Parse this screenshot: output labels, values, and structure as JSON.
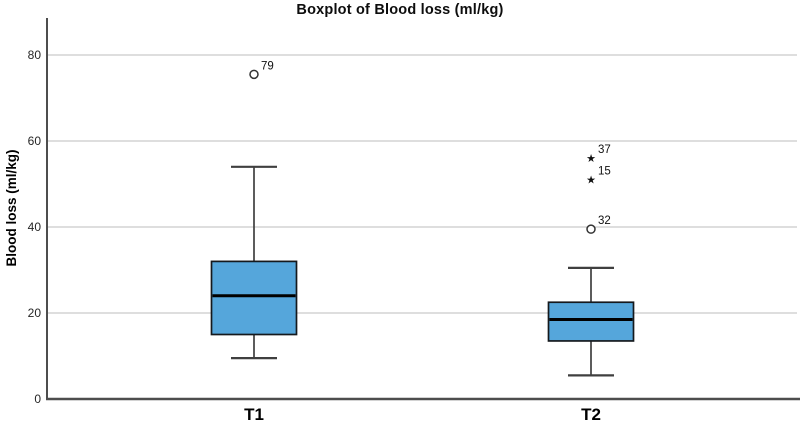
{
  "chart_data": {
    "type": "boxplot",
    "title": "Boxplot of Blood loss (ml/kg)",
    "ylabel": "Blood loss (ml/kg)",
    "xlabel": "",
    "categories": [
      "T1",
      "T2"
    ],
    "yticks": [
      0,
      20,
      40,
      60,
      80
    ],
    "ylim": [
      0,
      88
    ],
    "grid": "horizontal-light-gray",
    "legend": "none",
    "series": [
      {
        "category": "T1",
        "whisker_low": 9.5,
        "q1": 15,
        "median": 24,
        "q3": 32,
        "whisker_high": 54,
        "outliers": [
          {
            "value": 75.5,
            "label": "79",
            "marker": "circle"
          }
        ]
      },
      {
        "category": "T2",
        "whisker_low": 5.5,
        "q1": 13.5,
        "median": 18.5,
        "q3": 22.5,
        "whisker_high": 30.5,
        "outliers": [
          {
            "value": 39.5,
            "label": "32",
            "marker": "circle"
          },
          {
            "value": 51,
            "label": "15",
            "marker": "star"
          },
          {
            "value": 56,
            "label": "37",
            "marker": "star"
          }
        ]
      }
    ],
    "colors": {
      "box_fill": "#55a6db",
      "box_border": "#15191d",
      "median": "#000000",
      "whisker": "#3f3f3f",
      "axis": "#4d4d4d",
      "gridline": "#c9c9c9",
      "text": "#262626",
      "background": "#ffffff"
    }
  }
}
